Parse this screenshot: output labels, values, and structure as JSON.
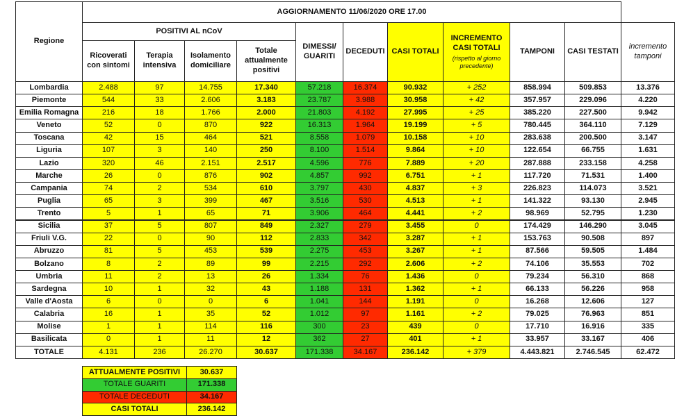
{
  "header": {
    "title": "AGGIORNAMENTO 11/06/2020 ORE 17.00",
    "region": "Regione",
    "positive_group": "POSITIVI AL nCoV",
    "columns": [
      "Ricoverati con sintomi",
      "Terapia intensiva",
      "Isolamento domiciliare",
      "Totale attualmente positivi",
      "DIMESSI/ GUARITI",
      "DECEDUTI",
      "CASI TOTALI",
      "INCREMENTO CASI TOTALI",
      "TAMPONI",
      "CASI TESTATI",
      "incremento tamponi"
    ],
    "increment_note": "(rispetto al giorno precedente)"
  },
  "table": {
    "rows": [
      [
        "Lombardia",
        "2.488",
        "97",
        "14.755",
        "17.340",
        "57.218",
        "16.374",
        "90.932",
        "+ 252",
        "858.994",
        "509.853",
        "13.376"
      ],
      [
        "Piemonte",
        "544",
        "33",
        "2.606",
        "3.183",
        "23.787",
        "3.988",
        "30.958",
        "+ 42",
        "357.957",
        "229.096",
        "4.220"
      ],
      [
        "Emilia Romagna",
        "216",
        "18",
        "1.766",
        "2.000",
        "21.803",
        "4.192",
        "27.995",
        "+ 25",
        "385.220",
        "227.500",
        "9.942"
      ],
      [
        "Veneto",
        "52",
        "0",
        "870",
        "922",
        "16.313",
        "1.964",
        "19.199",
        "+ 5",
        "780.445",
        "364.110",
        "7.129"
      ],
      [
        "Toscana",
        "42",
        "15",
        "464",
        "521",
        "8.558",
        "1.079",
        "10.158",
        "+ 10",
        "283.638",
        "200.500",
        "3.147"
      ],
      [
        "Liguria",
        "107",
        "3",
        "140",
        "250",
        "8.100",
        "1.514",
        "9.864",
        "+ 10",
        "122.654",
        "66.755",
        "1.631"
      ],
      [
        "Lazio",
        "320",
        "46",
        "2.151",
        "2.517",
        "4.596",
        "776",
        "7.889",
        "+ 20",
        "287.888",
        "233.158",
        "4.258"
      ],
      [
        "Marche",
        "26",
        "0",
        "876",
        "902",
        "4.857",
        "992",
        "6.751",
        "+ 1",
        "117.720",
        "71.531",
        "1.400"
      ],
      [
        "Campania",
        "74",
        "2",
        "534",
        "610",
        "3.797",
        "430",
        "4.837",
        "+ 3",
        "226.823",
        "114.073",
        "3.521"
      ],
      [
        "Puglia",
        "65",
        "3",
        "399",
        "467",
        "3.516",
        "530",
        "4.513",
        "+ 1",
        "141.322",
        "93.130",
        "2.945"
      ],
      [
        "Trento",
        "5",
        "1",
        "65",
        "71",
        "3.906",
        "464",
        "4.441",
        "+ 2",
        "98.969",
        "52.795",
        "1.230"
      ],
      [
        "Sicilia",
        "37",
        "5",
        "807",
        "849",
        "2.327",
        "279",
        "3.455",
        "0",
        "174.429",
        "146.290",
        "3.045"
      ],
      [
        "Friuli V.G.",
        "22",
        "0",
        "90",
        "112",
        "2.833",
        "342",
        "3.287",
        "+ 1",
        "153.763",
        "90.508",
        "897"
      ],
      [
        "Abruzzo",
        "81",
        "5",
        "453",
        "539",
        "2.275",
        "453",
        "3.267",
        "+ 1",
        "87.566",
        "59.505",
        "1.484"
      ],
      [
        "Bolzano",
        "8",
        "2",
        "89",
        "99",
        "2.215",
        "292",
        "2.606",
        "+ 2",
        "74.106",
        "35.553",
        "702"
      ],
      [
        "Umbria",
        "11",
        "2",
        "13",
        "26",
        "1.334",
        "76",
        "1.436",
        "0",
        "79.234",
        "56.310",
        "868"
      ],
      [
        "Sardegna",
        "10",
        "1",
        "32",
        "43",
        "1.188",
        "131",
        "1.362",
        "+ 1",
        "66.133",
        "56.226",
        "958"
      ],
      [
        "Valle d'Aosta",
        "6",
        "0",
        "0",
        "6",
        "1.041",
        "144",
        "1.191",
        "0",
        "16.268",
        "12.606",
        "127"
      ],
      [
        "Calabria",
        "16",
        "1",
        "35",
        "52",
        "1.012",
        "97",
        "1.161",
        "+ 2",
        "79.025",
        "76.963",
        "851"
      ],
      [
        "Molise",
        "1",
        "1",
        "114",
        "116",
        "300",
        "23",
        "439",
        "0",
        "17.710",
        "16.916",
        "335"
      ],
      [
        "Basilicata",
        "0",
        "1",
        "11",
        "12",
        "362",
        "27",
        "401",
        "+ 1",
        "33.957",
        "33.167",
        "406"
      ],
      [
        "TOTALE",
        "4.131",
        "236",
        "26.270",
        "30.637",
        "171.338",
        "34.167",
        "236.142",
        "+ 379",
        "4.443.821",
        "2.746.545",
        "62.472"
      ]
    ]
  },
  "summary": [
    [
      "ATTUALMENTE POSITIVI",
      "30.637"
    ],
    [
      "TOTALE GUARITI",
      "171.338"
    ],
    [
      "TOTALE DECEDUTI",
      "34.167"
    ],
    [
      "CASI TOTALI",
      "236.142"
    ]
  ]
}
